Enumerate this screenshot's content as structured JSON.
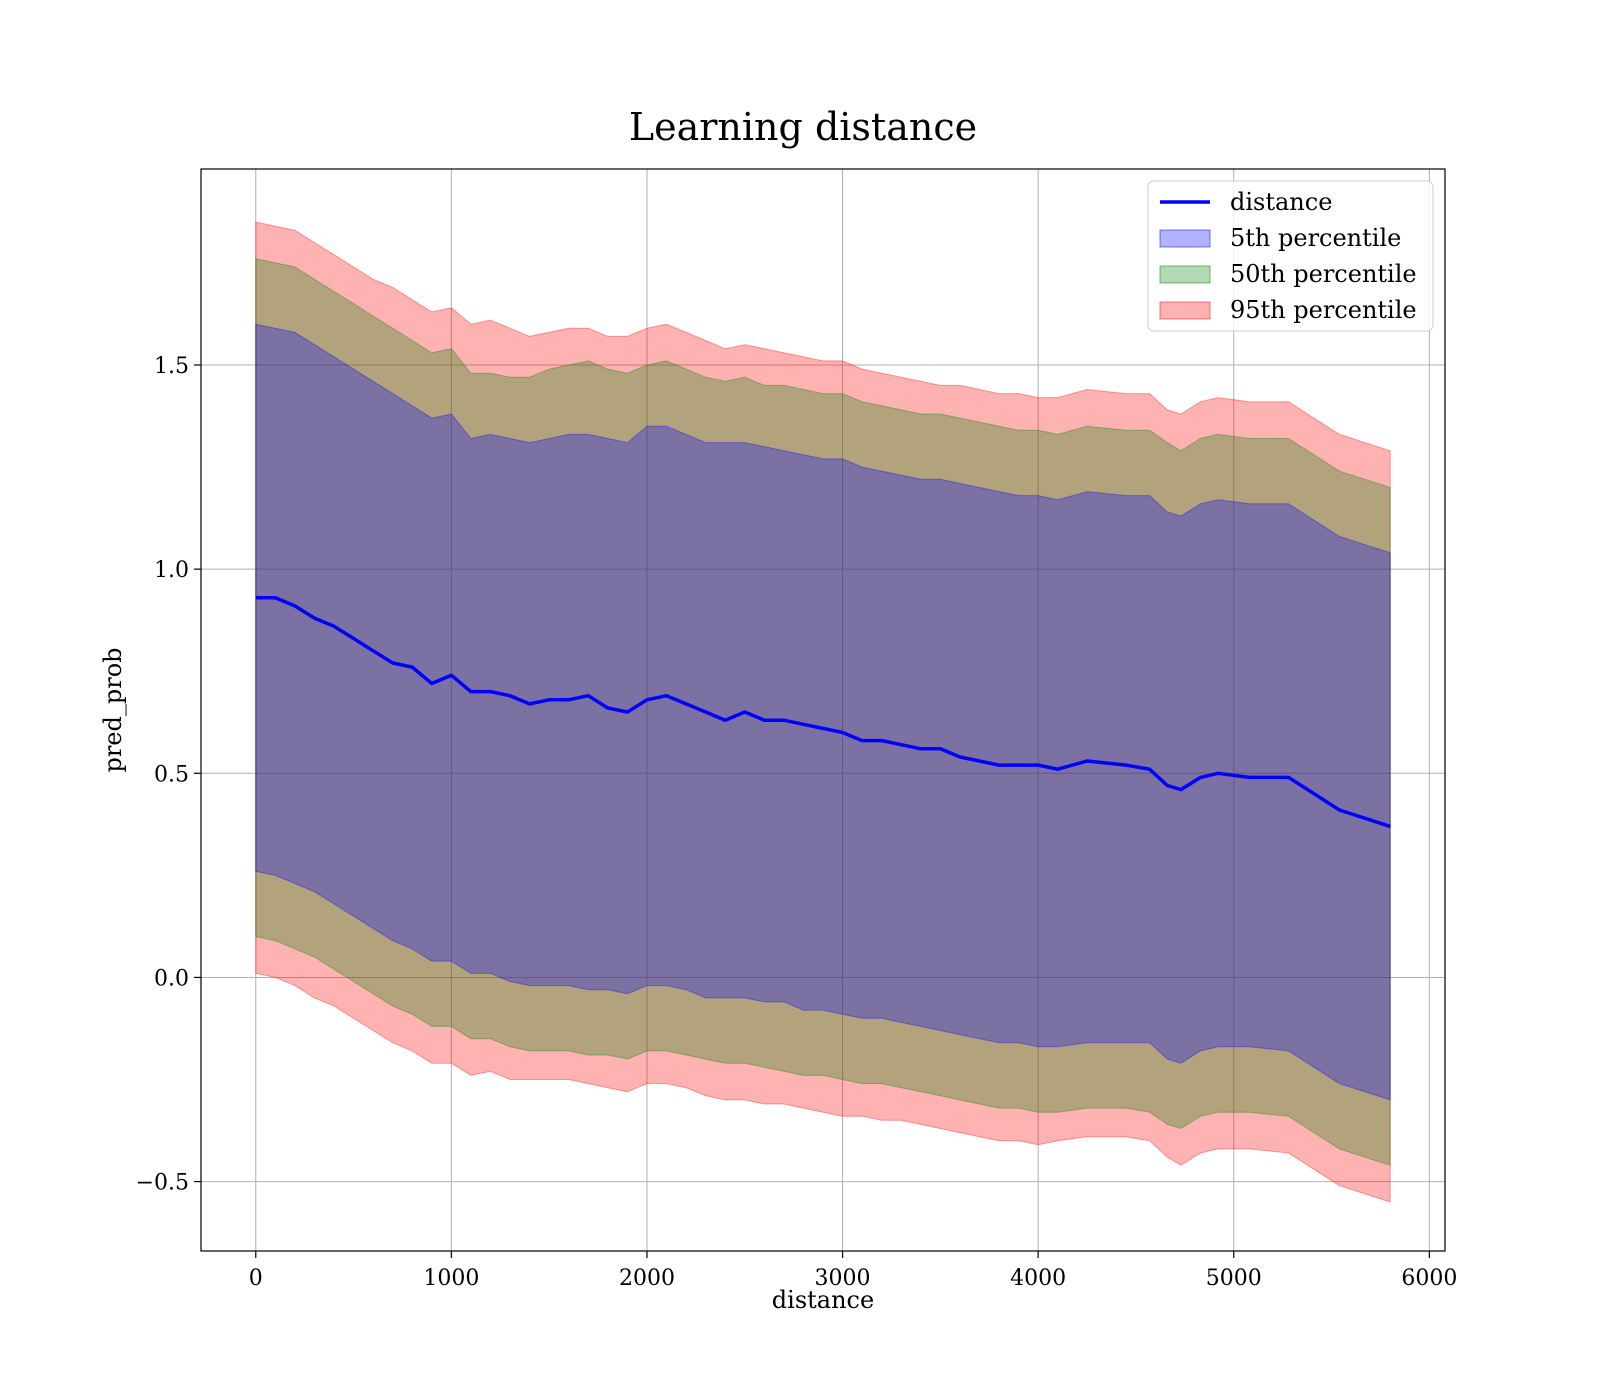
{
  "chart_data": {
    "type": "line",
    "title": "Learning distance",
    "xlabel": "distance",
    "ylabel": "pred_prob",
    "xlim": [
      -280,
      6080
    ],
    "ylim": [
      -0.67,
      1.98
    ],
    "xticks": [
      0,
      1000,
      2000,
      3000,
      4000,
      5000,
      6000
    ],
    "xtick_labels": [
      "0",
      "1000",
      "2000",
      "3000",
      "4000",
      "5000",
      "6000"
    ],
    "yticks": [
      -0.5,
      0.0,
      0.5,
      1.0,
      1.5
    ],
    "ytick_labels": [
      "−0.5",
      "0.0",
      "0.5",
      "1.0",
      "1.5"
    ],
    "grid": true,
    "legend_position": "top-right",
    "colors": {
      "line": "#0000ff",
      "band_5": "#0000ff",
      "band_50": "#008000",
      "band_95": "#ff0000"
    },
    "legend": [
      {
        "label": "distance",
        "kind": "line",
        "color": "#0000ff"
      },
      {
        "label": "5th percentile",
        "kind": "patch",
        "color": "#0000ff"
      },
      {
        "label": "50th percentile",
        "kind": "patch",
        "color": "#008000"
      },
      {
        "label": "95th percentile",
        "kind": "patch",
        "color": "#ff0000"
      }
    ],
    "x": [
      0,
      100,
      200,
      300,
      400,
      500,
      600,
      700,
      800,
      900,
      1000,
      1100,
      1200,
      1300,
      1400,
      1500,
      1600,
      1700,
      1800,
      1900,
      2000,
      2100,
      2200,
      2300,
      2400,
      2500,
      2600,
      2700,
      2800,
      2900,
      3000,
      3100,
      3200,
      3300,
      3400,
      3500,
      3600,
      3700,
      3800,
      3900,
      4000,
      4100,
      4250,
      4450,
      4570,
      4660,
      4730,
      4830,
      4920,
      5080,
      5280,
      5540,
      5800
    ],
    "series": [
      {
        "name": "distance",
        "values": [
          0.93,
          0.93,
          0.91,
          0.88,
          0.86,
          0.83,
          0.8,
          0.77,
          0.76,
          0.72,
          0.74,
          0.7,
          0.7,
          0.69,
          0.67,
          0.68,
          0.68,
          0.69,
          0.66,
          0.65,
          0.68,
          0.69,
          0.67,
          0.65,
          0.63,
          0.65,
          0.63,
          0.63,
          0.62,
          0.61,
          0.6,
          0.58,
          0.58,
          0.57,
          0.56,
          0.56,
          0.54,
          0.53,
          0.52,
          0.52,
          0.52,
          0.51,
          0.53,
          0.52,
          0.51,
          0.47,
          0.46,
          0.49,
          0.5,
          0.49,
          0.49,
          0.41,
          0.37
        ]
      },
      {
        "name": "5th percentile",
        "upper": [
          1.6,
          1.59,
          1.58,
          1.55,
          1.52,
          1.49,
          1.46,
          1.43,
          1.4,
          1.37,
          1.38,
          1.32,
          1.33,
          1.32,
          1.31,
          1.32,
          1.33,
          1.33,
          1.32,
          1.31,
          1.35,
          1.35,
          1.33,
          1.31,
          1.31,
          1.31,
          1.3,
          1.29,
          1.28,
          1.27,
          1.27,
          1.25,
          1.24,
          1.23,
          1.22,
          1.22,
          1.21,
          1.2,
          1.19,
          1.18,
          1.18,
          1.17,
          1.19,
          1.18,
          1.18,
          1.14,
          1.13,
          1.16,
          1.17,
          1.16,
          1.16,
          1.08,
          1.04
        ],
        "lower": [
          0.26,
          0.25,
          0.23,
          0.21,
          0.18,
          0.15,
          0.12,
          0.09,
          0.07,
          0.04,
          0.04,
          0.01,
          0.01,
          -0.01,
          -0.02,
          -0.02,
          -0.02,
          -0.03,
          -0.03,
          -0.04,
          -0.02,
          -0.02,
          -0.03,
          -0.05,
          -0.05,
          -0.05,
          -0.06,
          -0.06,
          -0.08,
          -0.08,
          -0.09,
          -0.1,
          -0.1,
          -0.11,
          -0.12,
          -0.13,
          -0.14,
          -0.15,
          -0.16,
          -0.16,
          -0.17,
          -0.17,
          -0.16,
          -0.16,
          -0.16,
          -0.2,
          -0.21,
          -0.18,
          -0.17,
          -0.17,
          -0.18,
          -0.26,
          -0.3
        ]
      },
      {
        "name": "50th percentile",
        "upper": [
          1.76,
          1.75,
          1.74,
          1.71,
          1.68,
          1.65,
          1.62,
          1.59,
          1.56,
          1.53,
          1.54,
          1.48,
          1.48,
          1.47,
          1.47,
          1.49,
          1.5,
          1.51,
          1.49,
          1.48,
          1.5,
          1.51,
          1.49,
          1.47,
          1.46,
          1.47,
          1.45,
          1.45,
          1.44,
          1.43,
          1.43,
          1.41,
          1.4,
          1.39,
          1.38,
          1.38,
          1.37,
          1.36,
          1.35,
          1.34,
          1.34,
          1.33,
          1.35,
          1.34,
          1.34,
          1.31,
          1.29,
          1.32,
          1.33,
          1.32,
          1.32,
          1.24,
          1.2
        ],
        "lower": [
          0.1,
          0.09,
          0.07,
          0.05,
          0.02,
          -0.01,
          -0.04,
          -0.07,
          -0.09,
          -0.12,
          -0.12,
          -0.15,
          -0.15,
          -0.17,
          -0.18,
          -0.18,
          -0.18,
          -0.19,
          -0.19,
          -0.2,
          -0.18,
          -0.18,
          -0.19,
          -0.2,
          -0.21,
          -0.21,
          -0.22,
          -0.23,
          -0.24,
          -0.24,
          -0.25,
          -0.26,
          -0.26,
          -0.27,
          -0.28,
          -0.29,
          -0.3,
          -0.31,
          -0.32,
          -0.32,
          -0.33,
          -0.33,
          -0.32,
          -0.32,
          -0.33,
          -0.36,
          -0.37,
          -0.34,
          -0.33,
          -0.33,
          -0.34,
          -0.42,
          -0.46
        ]
      },
      {
        "name": "95th percentile",
        "upper": [
          1.85,
          1.84,
          1.83,
          1.8,
          1.77,
          1.74,
          1.71,
          1.69,
          1.66,
          1.63,
          1.64,
          1.6,
          1.61,
          1.59,
          1.57,
          1.58,
          1.59,
          1.59,
          1.57,
          1.57,
          1.59,
          1.6,
          1.58,
          1.56,
          1.54,
          1.55,
          1.54,
          1.53,
          1.52,
          1.51,
          1.51,
          1.49,
          1.48,
          1.47,
          1.46,
          1.45,
          1.45,
          1.44,
          1.43,
          1.43,
          1.42,
          1.42,
          1.44,
          1.43,
          1.43,
          1.39,
          1.38,
          1.41,
          1.42,
          1.41,
          1.41,
          1.33,
          1.29
        ],
        "lower": [
          0.01,
          0.0,
          -0.02,
          -0.05,
          -0.07,
          -0.1,
          -0.13,
          -0.16,
          -0.18,
          -0.21,
          -0.21,
          -0.24,
          -0.23,
          -0.25,
          -0.25,
          -0.25,
          -0.25,
          -0.26,
          -0.27,
          -0.28,
          -0.26,
          -0.26,
          -0.27,
          -0.29,
          -0.3,
          -0.3,
          -0.31,
          -0.31,
          -0.32,
          -0.33,
          -0.34,
          -0.34,
          -0.35,
          -0.35,
          -0.36,
          -0.37,
          -0.38,
          -0.39,
          -0.4,
          -0.4,
          -0.41,
          -0.4,
          -0.39,
          -0.39,
          -0.4,
          -0.44,
          -0.46,
          -0.43,
          -0.42,
          -0.42,
          -0.43,
          -0.51,
          -0.55
        ]
      }
    ]
  }
}
